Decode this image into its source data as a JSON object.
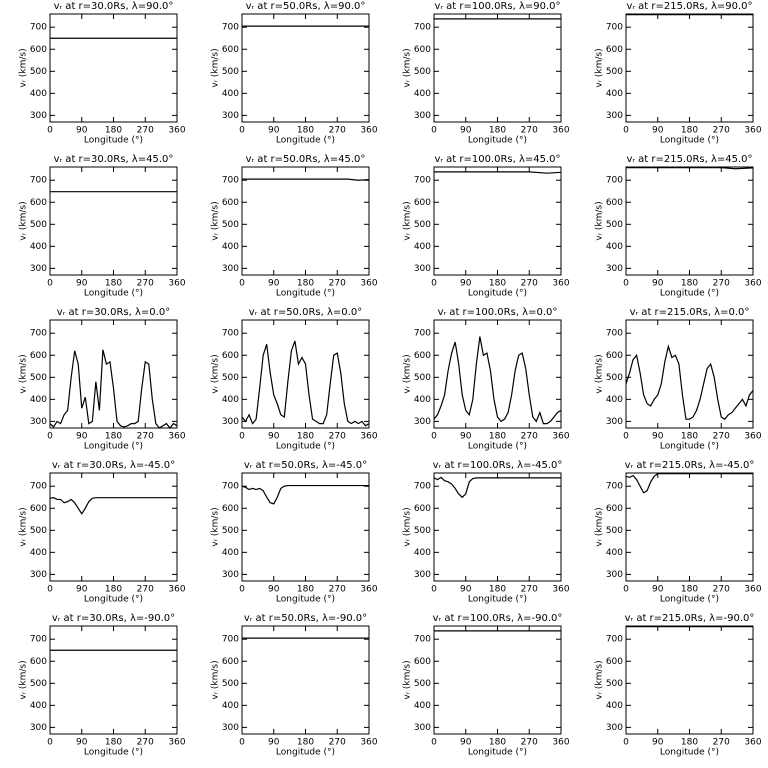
{
  "chart_data": [
    {
      "type": "line",
      "title": "vᵣ at r=30.0Rs, λ=90.0°",
      "xlabel": "Longitude (°)",
      "ylabel": "vᵣ (km/s)",
      "x": [
        0,
        360
      ],
      "values": [
        650,
        650
      ],
      "xlim": [
        0,
        360
      ],
      "ylim": [
        270,
        760
      ],
      "xticks": [
        0,
        90,
        180,
        270,
        360
      ],
      "yticks": [
        300,
        400,
        500,
        600,
        700
      ],
      "color": "#000000"
    },
    {
      "type": "line",
      "title": "vᵣ at r=50.0Rs, λ=90.0°",
      "xlabel": "Longitude (°)",
      "ylabel": "vᵣ (km/s)",
      "x": [
        0,
        360
      ],
      "values": [
        705,
        705
      ],
      "xlim": [
        0,
        360
      ],
      "ylim": [
        270,
        760
      ],
      "xticks": [
        0,
        90,
        180,
        270,
        360
      ],
      "yticks": [
        300,
        400,
        500,
        600,
        700
      ],
      "color": "#000000"
    },
    {
      "type": "line",
      "title": "vᵣ at r=100.0Rs, λ=90.0°",
      "xlabel": "Longitude (°)",
      "ylabel": "vᵣ (km/s)",
      "x": [
        0,
        360
      ],
      "values": [
        738,
        738
      ],
      "xlim": [
        0,
        360
      ],
      "ylim": [
        270,
        760
      ],
      "xticks": [
        0,
        90,
        180,
        270,
        360
      ],
      "yticks": [
        300,
        400,
        500,
        600,
        700
      ],
      "color": "#000000"
    },
    {
      "type": "line",
      "title": "vᵣ at r=215.0Rs, λ=90.0°",
      "xlabel": "Longitude (°)",
      "ylabel": "vᵣ (km/s)",
      "x": [
        0,
        360
      ],
      "values": [
        757,
        757
      ],
      "xlim": [
        0,
        360
      ],
      "ylim": [
        270,
        760
      ],
      "xticks": [
        0,
        90,
        180,
        270,
        360
      ],
      "yticks": [
        300,
        400,
        500,
        600,
        700
      ],
      "color": "#000000"
    },
    {
      "type": "line",
      "title": "vᵣ at r=30.0Rs, λ=45.0°",
      "xlabel": "Longitude (°)",
      "ylabel": "vᵣ (km/s)",
      "x": [
        0,
        360
      ],
      "values": [
        648,
        648
      ],
      "xlim": [
        0,
        360
      ],
      "ylim": [
        270,
        760
      ],
      "xticks": [
        0,
        90,
        180,
        270,
        360
      ],
      "yticks": [
        300,
        400,
        500,
        600,
        700
      ],
      "color": "#000000"
    },
    {
      "type": "line",
      "title": "vᵣ at r=50.0Rs, λ=45.0°",
      "xlabel": "Longitude (°)",
      "ylabel": "vᵣ (km/s)",
      "x": [
        0,
        300,
        330,
        360
      ],
      "values": [
        705,
        705,
        700,
        703
      ],
      "xlim": [
        0,
        360
      ],
      "ylim": [
        270,
        760
      ],
      "xticks": [
        0,
        90,
        180,
        270,
        360
      ],
      "yticks": [
        300,
        400,
        500,
        600,
        700
      ],
      "color": "#000000"
    },
    {
      "type": "line",
      "title": "vᵣ at r=100.0Rs, λ=45.0°",
      "xlabel": "Longitude (°)",
      "ylabel": "vᵣ (km/s)",
      "x": [
        0,
        270,
        320,
        360
      ],
      "values": [
        738,
        738,
        732,
        736
      ],
      "xlim": [
        0,
        360
      ],
      "ylim": [
        270,
        760
      ],
      "xticks": [
        0,
        90,
        180,
        270,
        360
      ],
      "yticks": [
        300,
        400,
        500,
        600,
        700
      ],
      "color": "#000000"
    },
    {
      "type": "line",
      "title": "vᵣ at r=215.0Rs, λ=45.0°",
      "xlabel": "Longitude (°)",
      "ylabel": "vᵣ (km/s)",
      "x": [
        0,
        270,
        310,
        360
      ],
      "values": [
        757,
        757,
        752,
        756
      ],
      "xlim": [
        0,
        360
      ],
      "ylim": [
        270,
        760
      ],
      "xticks": [
        0,
        90,
        180,
        270,
        360
      ],
      "yticks": [
        300,
        400,
        500,
        600,
        700
      ],
      "color": "#000000"
    },
    {
      "type": "line",
      "title": "vᵣ at r=30.0Rs, λ=0.0°",
      "xlabel": "Longitude (°)",
      "ylabel": "vᵣ (km/s)",
      "x": [
        0,
        10,
        20,
        30,
        40,
        50,
        60,
        70,
        80,
        90,
        100,
        110,
        120,
        130,
        140,
        150,
        160,
        170,
        180,
        190,
        200,
        210,
        220,
        230,
        240,
        250,
        260,
        270,
        280,
        290,
        300,
        310,
        320,
        330,
        340,
        350,
        360
      ],
      "values": [
        290,
        275,
        300,
        290,
        330,
        350,
        500,
        620,
        560,
        360,
        410,
        290,
        300,
        480,
        350,
        625,
        560,
        570,
        450,
        300,
        280,
        275,
        280,
        290,
        290,
        300,
        450,
        570,
        560,
        400,
        290,
        270,
        280,
        290,
        270,
        290,
        280
      ],
      "xlim": [
        0,
        360
      ],
      "ylim": [
        270,
        760
      ],
      "xticks": [
        0,
        90,
        180,
        270,
        360
      ],
      "yticks": [
        300,
        400,
        500,
        600,
        700
      ],
      "color": "#000000"
    },
    {
      "type": "line",
      "title": "vᵣ at r=50.0Rs, λ=0.0°",
      "xlabel": "Longitude (°)",
      "ylabel": "vᵣ (km/s)",
      "x": [
        0,
        10,
        20,
        30,
        40,
        50,
        60,
        70,
        80,
        90,
        100,
        110,
        120,
        130,
        140,
        150,
        160,
        170,
        180,
        190,
        200,
        210,
        220,
        230,
        240,
        250,
        260,
        270,
        280,
        290,
        300,
        310,
        320,
        330,
        340,
        350,
        360
      ],
      "values": [
        320,
        300,
        330,
        290,
        310,
        450,
        600,
        650,
        520,
        420,
        380,
        330,
        320,
        480,
        620,
        665,
        560,
        590,
        560,
        420,
        310,
        300,
        290,
        290,
        330,
        470,
        600,
        610,
        520,
        380,
        300,
        290,
        300,
        290,
        300,
        280,
        290
      ],
      "xlim": [
        0,
        360
      ],
      "ylim": [
        270,
        760
      ],
      "xticks": [
        0,
        90,
        180,
        270,
        360
      ],
      "yticks": [
        300,
        400,
        500,
        600,
        700
      ],
      "color": "#000000"
    },
    {
      "type": "line",
      "title": "vᵣ at r=100.0Rs, λ=0.0°",
      "xlabel": "Longitude (°)",
      "ylabel": "vᵣ (km/s)",
      "x": [
        0,
        10,
        20,
        30,
        40,
        50,
        60,
        70,
        80,
        90,
        100,
        110,
        120,
        130,
        140,
        150,
        160,
        170,
        180,
        190,
        200,
        210,
        220,
        230,
        240,
        250,
        260,
        270,
        280,
        290,
        300,
        310,
        320,
        330,
        340,
        350,
        360
      ],
      "values": [
        310,
        330,
        370,
        420,
        530,
        610,
        660,
        560,
        420,
        350,
        330,
        400,
        560,
        685,
        600,
        610,
        530,
        400,
        320,
        300,
        310,
        340,
        420,
        530,
        600,
        610,
        540,
        420,
        320,
        300,
        340,
        290,
        290,
        300,
        320,
        340,
        350
      ],
      "xlim": [
        0,
        360
      ],
      "ylim": [
        270,
        760
      ],
      "xticks": [
        0,
        90,
        180,
        270,
        360
      ],
      "yticks": [
        300,
        400,
        500,
        600,
        700
      ],
      "color": "#000000"
    },
    {
      "type": "line",
      "title": "vᵣ at r=215.0Rs, λ=0.0°",
      "xlabel": "Longitude (°)",
      "ylabel": "vᵣ (km/s)",
      "x": [
        0,
        10,
        20,
        30,
        40,
        50,
        60,
        70,
        80,
        90,
        100,
        110,
        120,
        130,
        140,
        150,
        160,
        170,
        180,
        190,
        200,
        210,
        220,
        230,
        240,
        250,
        260,
        270,
        280,
        290,
        300,
        310,
        320,
        330,
        340,
        350,
        360
      ],
      "values": [
        470,
        520,
        580,
        600,
        520,
        420,
        380,
        370,
        400,
        420,
        470,
        570,
        640,
        590,
        600,
        560,
        420,
        310,
        310,
        320,
        350,
        400,
        470,
        540,
        560,
        500,
        400,
        320,
        310,
        330,
        340,
        360,
        380,
        400,
        370,
        420,
        440
      ],
      "xlim": [
        0,
        360
      ],
      "ylim": [
        270,
        760
      ],
      "xticks": [
        0,
        90,
        180,
        270,
        360
      ],
      "yticks": [
        300,
        400,
        500,
        600,
        700
      ],
      "color": "#000000"
    },
    {
      "type": "line",
      "title": "vᵣ at r=30.0Rs, λ=-45.0°",
      "xlabel": "Longitude (°)",
      "ylabel": "vᵣ (km/s)",
      "x": [
        0,
        10,
        20,
        30,
        40,
        50,
        60,
        70,
        80,
        90,
        100,
        110,
        120,
        130,
        360
      ],
      "values": [
        645,
        648,
        640,
        640,
        625,
        630,
        640,
        625,
        600,
        575,
        600,
        630,
        645,
        648,
        648
      ],
      "xlim": [
        0,
        360
      ],
      "ylim": [
        270,
        760
      ],
      "xticks": [
        0,
        90,
        180,
        270,
        360
      ],
      "yticks": [
        300,
        400,
        500,
        600,
        700
      ],
      "color": "#000000"
    },
    {
      "type": "line",
      "title": "vᵣ at r=50.0Rs, λ=-45.0°",
      "xlabel": "Longitude (°)",
      "ylabel": "vᵣ (km/s)",
      "x": [
        0,
        10,
        20,
        30,
        40,
        50,
        60,
        70,
        80,
        90,
        100,
        110,
        120,
        130,
        360
      ],
      "values": [
        700,
        695,
        685,
        690,
        685,
        690,
        680,
        650,
        625,
        620,
        650,
        690,
        700,
        703,
        703
      ],
      "xlim": [
        0,
        360
      ],
      "ylim": [
        270,
        760
      ],
      "xticks": [
        0,
        90,
        180,
        270,
        360
      ],
      "yticks": [
        300,
        400,
        500,
        600,
        700
      ],
      "color": "#000000"
    },
    {
      "type": "line",
      "title": "vᵣ at r=100.0Rs, λ=-45.0°",
      "xlabel": "Longitude (°)",
      "ylabel": "vᵣ (km/s)",
      "x": [
        0,
        10,
        20,
        30,
        40,
        50,
        60,
        70,
        80,
        90,
        100,
        110,
        120,
        360
      ],
      "values": [
        738,
        730,
        740,
        725,
        720,
        710,
        690,
        665,
        650,
        665,
        720,
        735,
        738,
        738
      ],
      "xlim": [
        0,
        360
      ],
      "ylim": [
        270,
        760
      ],
      "xticks": [
        0,
        90,
        180,
        270,
        360
      ],
      "yticks": [
        300,
        400,
        500,
        600,
        700
      ],
      "color": "#000000"
    },
    {
      "type": "line",
      "title": "vᵣ at r=215.0Rs, λ=-45.0°",
      "xlabel": "Longitude (°)",
      "ylabel": "vᵣ (km/s)",
      "x": [
        0,
        10,
        20,
        30,
        40,
        50,
        60,
        70,
        80,
        90,
        360
      ],
      "values": [
        745,
        740,
        748,
        730,
        700,
        670,
        680,
        720,
        745,
        757,
        757
      ],
      "xlim": [
        0,
        360
      ],
      "ylim": [
        270,
        760
      ],
      "xticks": [
        0,
        90,
        180,
        270,
        360
      ],
      "yticks": [
        300,
        400,
        500,
        600,
        700
      ],
      "color": "#000000"
    },
    {
      "type": "line",
      "title": "vᵣ at r=30.0Rs, λ=-90.0°",
      "xlabel": "Longitude (°)",
      "ylabel": "vᵣ (km/s)",
      "x": [
        0,
        360
      ],
      "values": [
        650,
        650
      ],
      "xlim": [
        0,
        360
      ],
      "ylim": [
        270,
        760
      ],
      "xticks": [
        0,
        90,
        180,
        270,
        360
      ],
      "yticks": [
        300,
        400,
        500,
        600,
        700
      ],
      "color": "#000000"
    },
    {
      "type": "line",
      "title": "vᵣ at r=50.0Rs, λ=-90.0°",
      "xlabel": "Longitude (°)",
      "ylabel": "vᵣ (km/s)",
      "x": [
        0,
        360
      ],
      "values": [
        705,
        705
      ],
      "xlim": [
        0,
        360
      ],
      "ylim": [
        270,
        760
      ],
      "xticks": [
        0,
        90,
        180,
        270,
        360
      ],
      "yticks": [
        300,
        400,
        500,
        600,
        700
      ],
      "color": "#000000"
    },
    {
      "type": "line",
      "title": "vᵣ at r=100.0Rs, λ=-90.0°",
      "xlabel": "Longitude (°)",
      "ylabel": "vᵣ (km/s)",
      "x": [
        0,
        360
      ],
      "values": [
        738,
        738
      ],
      "xlim": [
        0,
        360
      ],
      "ylim": [
        270,
        760
      ],
      "xticks": [
        0,
        90,
        180,
        270,
        360
      ],
      "yticks": [
        300,
        400,
        500,
        600,
        700
      ],
      "color": "#000000"
    },
    {
      "type": "line",
      "title": "vᵣ at r=215.0Rs, λ=-90.0°",
      "xlabel": "Longitude (°)",
      "ylabel": "vᵣ (km/s)",
      "x": [
        0,
        360
      ],
      "values": [
        757,
        757
      ],
      "xlim": [
        0,
        360
      ],
      "ylim": [
        270,
        760
      ],
      "xticks": [
        0,
        90,
        180,
        270,
        360
      ],
      "yticks": [
        300,
        400,
        500,
        600,
        700
      ],
      "color": "#000000"
    }
  ]
}
